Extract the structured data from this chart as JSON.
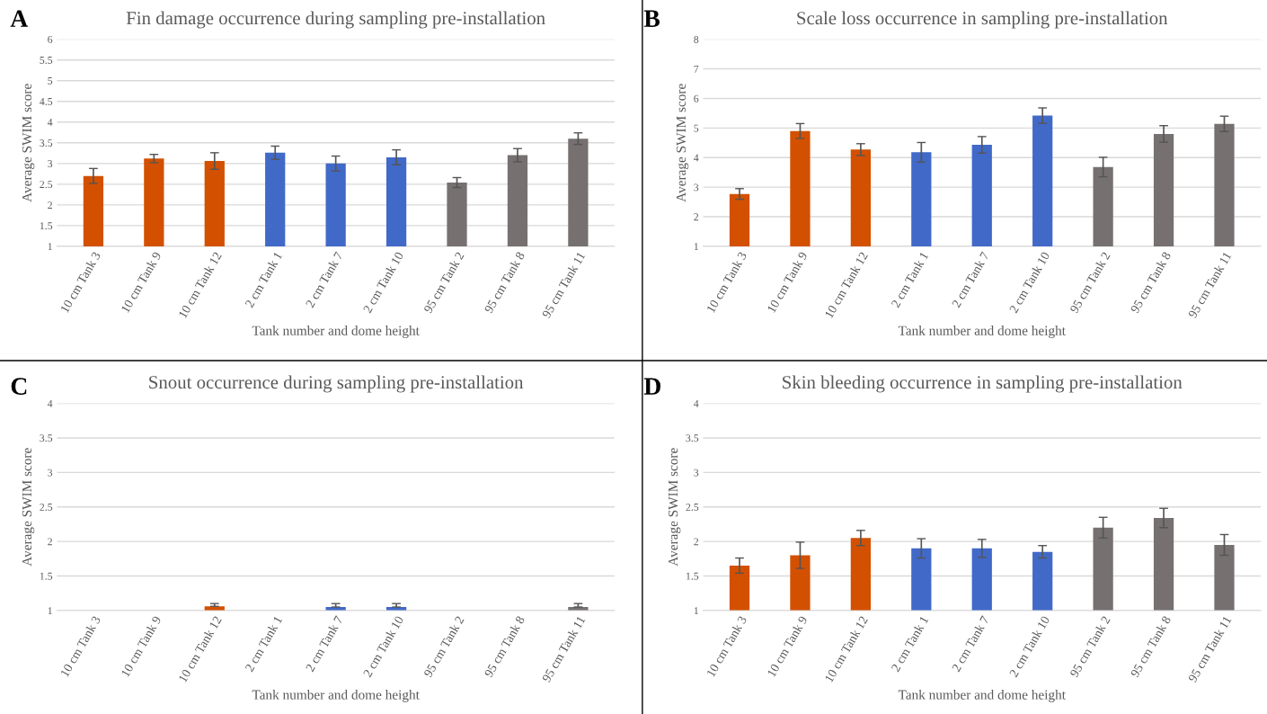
{
  "chart_data": [
    {
      "type": "bar",
      "title": "Fin damage occurrence during sampling pre-installation",
      "xlabel": "Tank number and dome height",
      "ylabel": "Average SWIM score",
      "annotations": [
        "A"
      ],
      "categories": [
        "10 cm Tank 3",
        "10 cm Tank 9",
        "10 cm Tank 12",
        "2 cm Tank 1",
        "2 cm Tank 7",
        "2 cm Tank 10",
        "95 cm Tank 2",
        "95 cm Tank 8",
        "95 cm Tank 11"
      ],
      "values": [
        2.7,
        3.12,
        3.06,
        3.26,
        3.0,
        3.15,
        2.54,
        3.2,
        3.6
      ],
      "errors": [
        0.18,
        0.1,
        0.2,
        0.16,
        0.18,
        0.18,
        0.12,
        0.16,
        0.14
      ],
      "colors": [
        "#d35000",
        "#d35000",
        "#d35000",
        "#4169c8",
        "#4169c8",
        "#4169c8",
        "#767070",
        "#767070",
        "#767070"
      ],
      "ylim": [
        1,
        6
      ],
      "yticks": [
        1,
        1.5,
        2,
        2.5,
        3,
        3.5,
        4,
        4.5,
        5,
        5.5,
        6
      ],
      "grid": "y"
    },
    {
      "type": "bar",
      "title": "Scale loss occurrence in sampling pre-installation",
      "xlabel": "Tank number and dome height",
      "ylabel": "Average SWIM score",
      "annotations": [
        "B"
      ],
      "categories": [
        "10 cm Tank 3",
        "10 cm Tank 9",
        "10 cm Tank 12",
        "2 cm Tank 1",
        "2 cm Tank 7",
        "2 cm Tank 10",
        "95 cm Tank 2",
        "95 cm Tank 8",
        "95 cm Tank 11"
      ],
      "values": [
        2.77,
        4.9,
        4.27,
        4.18,
        4.43,
        5.42,
        3.68,
        4.8,
        5.14
      ],
      "errors": [
        0.18,
        0.25,
        0.2,
        0.33,
        0.28,
        0.26,
        0.33,
        0.28,
        0.26
      ],
      "colors": [
        "#d35000",
        "#d35000",
        "#d35000",
        "#4169c8",
        "#4169c8",
        "#4169c8",
        "#767070",
        "#767070",
        "#767070"
      ],
      "ylim": [
        1,
        8
      ],
      "yticks": [
        1,
        2,
        3,
        4,
        5,
        6,
        7,
        8
      ],
      "grid": "y"
    },
    {
      "type": "bar",
      "title": "Snout occurrence during sampling pre-installation",
      "xlabel": "Tank number and dome height",
      "ylabel": "Average SWIM score",
      "annotations": [
        "C"
      ],
      "categories": [
        "10 cm Tank 3",
        "10 cm Tank 9",
        "10 cm Tank 12",
        "2 cm Tank 1",
        "2 cm Tank 7",
        "2 cm Tank 10",
        "95 cm Tank 2",
        "95 cm Tank 8",
        "95 cm Tank 11"
      ],
      "values": [
        1.0,
        1.0,
        1.06,
        1.0,
        1.05,
        1.05,
        1.0,
        1.0,
        1.05
      ],
      "errors": [
        null,
        null,
        [
          1.06,
          1.1
        ],
        null,
        [
          1.05,
          1.1
        ],
        [
          1.05,
          1.1
        ],
        null,
        null,
        [
          1.05,
          1.1
        ]
      ],
      "colors": [
        "#d35000",
        "#d35000",
        "#d35000",
        "#4169c8",
        "#4169c8",
        "#4169c8",
        "#767070",
        "#767070",
        "#767070"
      ],
      "ylim": [
        1,
        4
      ],
      "yticks": [
        1,
        1.5,
        2,
        2.5,
        3,
        3.5,
        4
      ],
      "grid": "y"
    },
    {
      "type": "bar",
      "title": "Skin bleeding occurrence in sampling pre-installation",
      "xlabel": "Tank number and dome height",
      "ylabel": "Average SWIM score",
      "annotations": [
        "D"
      ],
      "categories": [
        "10 cm Tank 3",
        "10 cm Tank 9",
        "10 cm Tank 12",
        "2 cm Tank 1",
        "2 cm Tank 7",
        "2 cm Tank 10",
        "95 cm Tank 2",
        "95 cm Tank 8",
        "95 cm Tank 11"
      ],
      "values": [
        1.65,
        1.8,
        2.05,
        1.9,
        1.9,
        1.85,
        2.2,
        2.34,
        1.95
      ],
      "errors": [
        0.11,
        0.19,
        0.11,
        0.14,
        0.13,
        0.09,
        0.15,
        0.14,
        0.15
      ],
      "colors": [
        "#d35000",
        "#d35000",
        "#d35000",
        "#4169c8",
        "#4169c8",
        "#4169c8",
        "#767070",
        "#767070",
        "#767070"
      ],
      "ylim": [
        1,
        4
      ],
      "yticks": [
        1,
        1.5,
        2,
        2.5,
        3,
        3.5,
        4
      ],
      "grid": "y"
    }
  ]
}
